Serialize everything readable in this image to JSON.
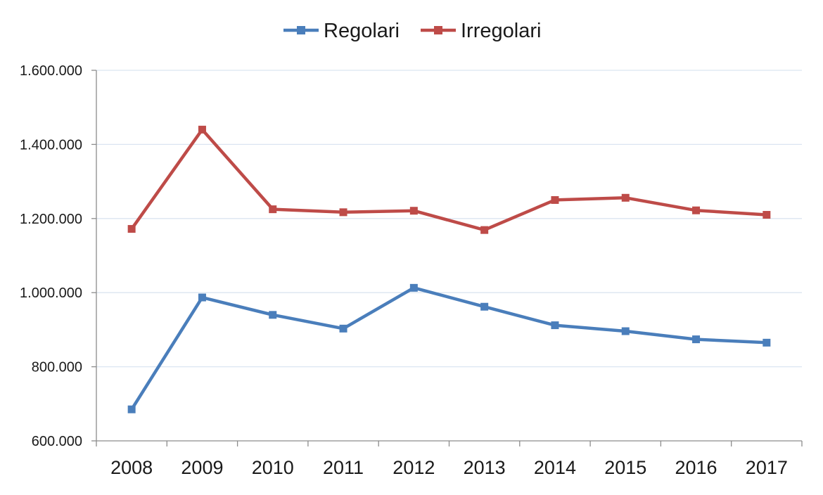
{
  "chart_data": {
    "type": "line",
    "title": "",
    "xlabel": "",
    "ylabel": "",
    "categories": [
      "2008",
      "2009",
      "2010",
      "2011",
      "2012",
      "2013",
      "2014",
      "2015",
      "2016",
      "2017"
    ],
    "series": [
      {
        "name": "Regolari",
        "color": "#4a7ebb",
        "marker": "square",
        "values": [
          685000,
          987000,
          940000,
          903000,
          1013000,
          962000,
          912000,
          896000,
          874000,
          865000
        ]
      },
      {
        "name": "Irregolari",
        "color": "#be4b48",
        "marker": "square",
        "values": [
          1172000,
          1440000,
          1225000,
          1217000,
          1221000,
          1169000,
          1250000,
          1256000,
          1222000,
          1210000
        ]
      }
    ],
    "ylim": [
      600000,
      1600000
    ],
    "yticks": [
      600000,
      800000,
      1000000,
      1200000,
      1400000,
      1600000
    ],
    "ytick_labels": [
      "600.000",
      "800.000",
      "1.000.000",
      "1.200.000",
      "1.400.000",
      "1.600.000"
    ],
    "grid": true,
    "grid_color": "#dbe5f1",
    "axis_color": "#8c8c8c",
    "legend": "top-center"
  }
}
